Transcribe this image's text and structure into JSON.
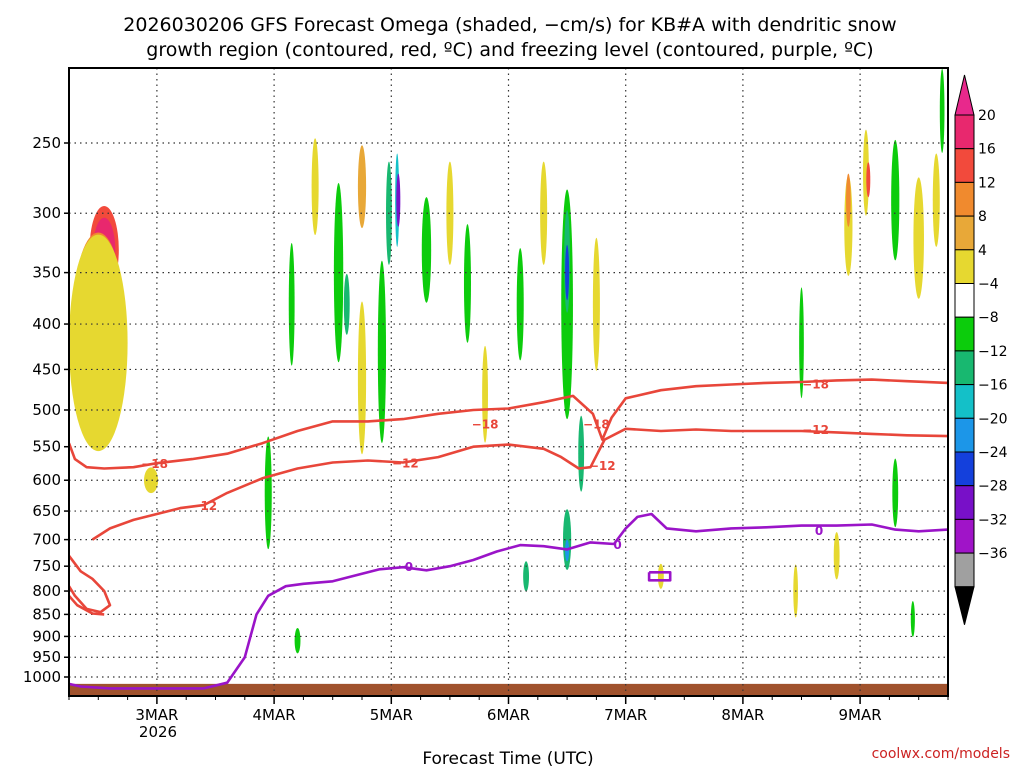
{
  "title_line1": "2026030206 GFS Forecast Omega (shaded, −cm/s) for KB#A with dendritic snow",
  "title_line2": "growth region (contoured, red, ºC) and freezing level (contoured, purple, ºC)",
  "xlabel": "Forecast Time (UTC)",
  "credit": "coolwx.com/models",
  "colors": {
    "dgz_contour": "#e8463a",
    "freezing_contour": "#9a14c8",
    "ground": "#a0522d"
  },
  "chart_data": {
    "type": "heatmap",
    "y_axis": {
      "unit": "hPa",
      "levels": [
        250,
        300,
        350,
        400,
        450,
        500,
        550,
        600,
        650,
        700,
        750,
        800,
        850,
        900,
        950,
        1000
      ],
      "tick_labels": [
        "250",
        "300",
        "350",
        "400",
        "450",
        "500",
        "550",
        "600",
        "650",
        "700",
        "750",
        "800",
        "850",
        "900",
        "950",
        "1000"
      ],
      "range": [
        200,
        1030
      ],
      "inverted": true
    },
    "x_axis": {
      "unit": "forecast day (March 2026, UTC)",
      "range": [
        2.25,
        9.75
      ],
      "ticks": [
        3,
        4,
        5,
        6,
        7,
        8,
        9
      ],
      "tick_labels": [
        "3MAR",
        "4MAR",
        "5MAR",
        "6MAR",
        "7MAR",
        "8MAR",
        "9MAR"
      ],
      "year_label": "2026",
      "grid": "dotted"
    },
    "colorbar": {
      "labels": [
        "20",
        "16",
        "12",
        "8",
        "4",
        "−4",
        "−8",
        "−12",
        "−16",
        "−20",
        "−24",
        "−28",
        "−32",
        "−36"
      ],
      "colors": [
        "#e8286e",
        "#f24a3c",
        "#f08a2e",
        "#e8a838",
        "#e6d830",
        "#ffffff",
        "#0ccc0c",
        "#18b870",
        "#14c0c8",
        "#1c96e8",
        "#1440dc",
        "#7810c8",
        "#a014c8",
        "#a0a0a0"
      ],
      "top_arrow_color": "#e8288c",
      "bottom_arrow_color": "#000000"
    },
    "shading_blobs": [
      {
        "t": 2.55,
        "p": 330,
        "w": 0.25,
        "h": 75,
        "level": 16
      },
      {
        "t": 2.55,
        "p": 330,
        "w": 0.19,
        "h": 55,
        "level": 20
      },
      {
        "t": 2.45,
        "p": 420,
        "w": 0.15,
        "h": 60,
        "level": 16
      },
      {
        "t": 2.5,
        "p": 380,
        "w": 0.4,
        "h": 140,
        "level": 12
      },
      {
        "t": 2.45,
        "p": 460,
        "w": 0.3,
        "h": 130,
        "level": 8
      },
      {
        "t": 2.5,
        "p": 420,
        "w": 0.5,
        "h": 230,
        "level": 4
      },
      {
        "t": 2.95,
        "p": 600,
        "w": 0.12,
        "h": 40,
        "level": 4
      },
      {
        "t": 3.95,
        "p": 620,
        "w": 0.06,
        "h": 180,
        "level": -8
      },
      {
        "t": 4.15,
        "p": 380,
        "w": 0.05,
        "h": 120,
        "level": -8
      },
      {
        "t": 4.2,
        "p": 910,
        "w": 0.05,
        "h": 60,
        "level": -8
      },
      {
        "t": 4.35,
        "p": 280,
        "w": 0.06,
        "h": 70,
        "level": 4
      },
      {
        "t": 4.55,
        "p": 350,
        "w": 0.08,
        "h": 160,
        "level": -8
      },
      {
        "t": 4.62,
        "p": 380,
        "w": 0.05,
        "h": 60,
        "level": -12
      },
      {
        "t": 4.75,
        "p": 460,
        "w": 0.07,
        "h": 180,
        "level": 4
      },
      {
        "t": 4.92,
        "p": 430,
        "w": 0.07,
        "h": 200,
        "level": -8
      },
      {
        "t": 4.98,
        "p": 300,
        "w": 0.05,
        "h": 80,
        "level": -12
      },
      {
        "t": 5.05,
        "p": 290,
        "w": 0.03,
        "h": 70,
        "level": -16
      },
      {
        "t": 5.06,
        "p": 290,
        "w": 0.015,
        "h": 40,
        "level": -28
      },
      {
        "t": 4.75,
        "p": 280,
        "w": 0.07,
        "h": 60,
        "level": 8
      },
      {
        "t": 5.3,
        "p": 330,
        "w": 0.08,
        "h": 90,
        "level": -8
      },
      {
        "t": 5.5,
        "p": 300,
        "w": 0.06,
        "h": 80,
        "level": 4
      },
      {
        "t": 5.65,
        "p": 360,
        "w": 0.06,
        "h": 110,
        "level": -8
      },
      {
        "t": 5.8,
        "p": 480,
        "w": 0.05,
        "h": 120,
        "level": 4
      },
      {
        "t": 6.1,
        "p": 380,
        "w": 0.06,
        "h": 110,
        "level": -8
      },
      {
        "t": 6.15,
        "p": 770,
        "w": 0.05,
        "h": 60,
        "level": -12
      },
      {
        "t": 6.3,
        "p": 300,
        "w": 0.06,
        "h": 80,
        "level": 4
      },
      {
        "t": 6.5,
        "p": 380,
        "w": 0.1,
        "h": 220,
        "level": -8
      },
      {
        "t": 6.5,
        "p": 340,
        "w": 0.05,
        "h": 90,
        "level": -12
      },
      {
        "t": 6.5,
        "p": 350,
        "w": 0.025,
        "h": 50,
        "level": -24
      },
      {
        "t": 6.5,
        "p": 700,
        "w": 0.07,
        "h": 110,
        "level": -12
      },
      {
        "t": 6.5,
        "p": 720,
        "w": 0.035,
        "h": 40,
        "level": -20
      },
      {
        "t": 6.62,
        "p": 560,
        "w": 0.05,
        "h": 110,
        "level": -12
      },
      {
        "t": 6.75,
        "p": 380,
        "w": 0.06,
        "h": 130,
        "level": 4
      },
      {
        "t": 7.3,
        "p": 770,
        "w": 0.05,
        "h": 50,
        "level": 4
      },
      {
        "t": 8.45,
        "p": 800,
        "w": 0.04,
        "h": 110,
        "level": 4
      },
      {
        "t": 8.5,
        "p": 420,
        "w": 0.04,
        "h": 120,
        "level": -8
      },
      {
        "t": 8.8,
        "p": 730,
        "w": 0.05,
        "h": 90,
        "level": 4
      },
      {
        "t": 8.9,
        "p": 310,
        "w": 0.07,
        "h": 80,
        "level": 4
      },
      {
        "t": 8.9,
        "p": 290,
        "w": 0.04,
        "h": 40,
        "level": 12
      },
      {
        "t": 9.05,
        "p": 270,
        "w": 0.05,
        "h": 60,
        "level": 4
      },
      {
        "t": 9.07,
        "p": 275,
        "w": 0.025,
        "h": 25,
        "level": 16
      },
      {
        "t": 9.3,
        "p": 290,
        "w": 0.05,
        "h": 50,
        "level": -12
      },
      {
        "t": 9.3,
        "p": 290,
        "w": 0.07,
        "h": 90,
        "level": -8
      },
      {
        "t": 9.3,
        "p": 620,
        "w": 0.05,
        "h": 110,
        "level": -8
      },
      {
        "t": 9.5,
        "p": 320,
        "w": 0.09,
        "h": 100,
        "level": 4
      },
      {
        "t": 9.45,
        "p": 860,
        "w": 0.035,
        "h": 80,
        "level": -8
      },
      {
        "t": 9.65,
        "p": 290,
        "w": 0.06,
        "h": 70,
        "level": 4
      },
      {
        "t": 9.7,
        "p": 230,
        "w": 0.04,
        "h": 50,
        "level": -8
      }
    ],
    "dgz_contours": [
      {
        "label": "−18",
        "label_positions": [
          [
            2.98,
            574
          ],
          [
            5.8,
            518
          ],
          [
            6.75,
            518
          ],
          [
            8.62,
            467
          ]
        ],
        "points": [
          [
            2.25,
            545
          ],
          [
            2.3,
            568
          ],
          [
            2.4,
            580
          ],
          [
            2.55,
            582
          ],
          [
            2.8,
            580
          ],
          [
            3.0,
            574
          ],
          [
            3.3,
            568
          ],
          [
            3.6,
            560
          ],
          [
            3.9,
            545
          ],
          [
            4.2,
            528
          ],
          [
            4.5,
            515
          ],
          [
            4.8,
            515
          ],
          [
            5.1,
            512
          ],
          [
            5.4,
            505
          ],
          [
            5.7,
            500
          ],
          [
            6.0,
            498
          ],
          [
            6.3,
            490
          ],
          [
            6.55,
            482
          ],
          [
            6.72,
            505
          ],
          [
            6.8,
            540
          ],
          [
            6.88,
            510
          ],
          [
            7.0,
            485
          ],
          [
            7.3,
            475
          ],
          [
            7.6,
            470
          ],
          [
            7.9,
            468
          ],
          [
            8.2,
            466
          ],
          [
            8.5,
            465
          ],
          [
            8.8,
            463
          ],
          [
            9.1,
            462
          ],
          [
            9.4,
            464
          ],
          [
            9.75,
            466
          ]
        ]
      },
      {
        "label": "−12",
        "label_positions": [
          [
            3.4,
            640
          ],
          [
            5.12,
            573
          ],
          [
            6.8,
            577
          ],
          [
            8.62,
            525
          ]
        ],
        "points": [
          [
            2.45,
            700
          ],
          [
            2.6,
            680
          ],
          [
            2.8,
            665
          ],
          [
            3.0,
            655
          ],
          [
            3.2,
            645
          ],
          [
            3.4,
            640
          ],
          [
            3.6,
            620
          ],
          [
            3.9,
            597
          ],
          [
            4.2,
            582
          ],
          [
            4.5,
            573
          ],
          [
            4.8,
            570
          ],
          [
            5.1,
            573
          ],
          [
            5.4,
            565
          ],
          [
            5.7,
            550
          ],
          [
            6.0,
            547
          ],
          [
            6.3,
            553
          ],
          [
            6.45,
            565
          ],
          [
            6.6,
            582
          ],
          [
            6.7,
            580
          ],
          [
            6.82,
            540
          ],
          [
            7.0,
            525
          ],
          [
            7.3,
            528
          ],
          [
            7.6,
            526
          ],
          [
            7.9,
            528
          ],
          [
            8.2,
            528
          ],
          [
            8.5,
            528
          ],
          [
            8.8,
            530
          ],
          [
            9.1,
            532
          ],
          [
            9.4,
            534
          ],
          [
            9.75,
            535
          ]
        ]
      },
      {
        "label": "",
        "label_positions": [],
        "points": [
          [
            2.25,
            730
          ],
          [
            2.35,
            760
          ],
          [
            2.45,
            775
          ],
          [
            2.55,
            800
          ],
          [
            2.6,
            830
          ],
          [
            2.52,
            845
          ],
          [
            2.4,
            838
          ],
          [
            2.3,
            810
          ],
          [
            2.25,
            790
          ]
        ]
      },
      {
        "label": "",
        "label_positions": [],
        "points": [
          [
            2.25,
            810
          ],
          [
            2.32,
            830
          ],
          [
            2.45,
            848
          ],
          [
            2.55,
            850
          ]
        ]
      }
    ],
    "freezing_contours": [
      {
        "label": "0",
        "label_positions": [
          [
            5.15,
            750
          ],
          [
            6.93,
            708
          ],
          [
            8.65,
            683
          ]
        ],
        "points": [
          [
            2.25,
            1018
          ],
          [
            2.35,
            1025
          ],
          [
            2.6,
            1030
          ],
          [
            3.0,
            1030
          ],
          [
            3.4,
            1030
          ],
          [
            3.6,
            1015
          ],
          [
            3.75,
            950
          ],
          [
            3.85,
            850
          ],
          [
            3.95,
            810
          ],
          [
            4.1,
            790
          ],
          [
            4.25,
            785
          ],
          [
            4.5,
            780
          ],
          [
            4.7,
            768
          ],
          [
            4.9,
            756
          ],
          [
            5.1,
            752
          ],
          [
            5.3,
            758
          ],
          [
            5.5,
            750
          ],
          [
            5.7,
            738
          ],
          [
            5.9,
            722
          ],
          [
            6.1,
            710
          ],
          [
            6.3,
            712
          ],
          [
            6.5,
            718
          ],
          [
            6.7,
            705
          ],
          [
            6.9,
            708
          ],
          [
            7.0,
            680
          ],
          [
            7.1,
            660
          ],
          [
            7.22,
            655
          ],
          [
            7.35,
            680
          ],
          [
            7.6,
            685
          ],
          [
            7.9,
            680
          ],
          [
            8.2,
            678
          ],
          [
            8.5,
            675
          ],
          [
            8.8,
            675
          ],
          [
            9.1,
            673
          ],
          [
            9.3,
            682
          ],
          [
            9.5,
            685
          ],
          [
            9.75,
            682
          ]
        ]
      },
      {
        "label": "",
        "label_positions": [],
        "points": [
          [
            7.2,
            762
          ],
          [
            7.38,
            762
          ],
          [
            7.38,
            778
          ],
          [
            7.2,
            778
          ],
          [
            7.2,
            762
          ]
        ]
      }
    ],
    "ground_pressure": 1018
  }
}
